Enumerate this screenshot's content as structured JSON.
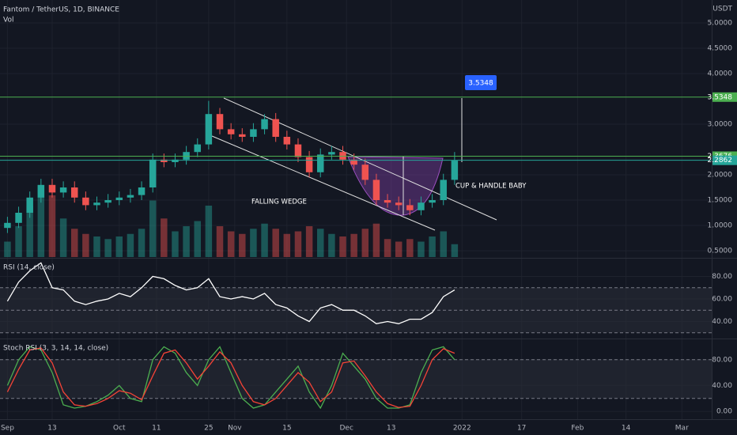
{
  "chart_data": [
    {
      "type": "candlestick",
      "title": "Fantom / TetherUS, 1D, BINANCE",
      "volume_label": "Vol",
      "currency": "USDT",
      "up_color": "#26a69a",
      "down_color": "#ef5350",
      "x": [
        0,
        3,
        6,
        9,
        12,
        15,
        18,
        21,
        24,
        27,
        30,
        33,
        36,
        39,
        42,
        45,
        48,
        51,
        54,
        57,
        60,
        63,
        66,
        69,
        72,
        75,
        78,
        81,
        84,
        87,
        90,
        93,
        96,
        99,
        102,
        105,
        108,
        111,
        114,
        117,
        120
      ],
      "open": [
        0.95,
        1.05,
        1.25,
        1.55,
        1.8,
        1.65,
        1.75,
        1.55,
        1.4,
        1.45,
        1.5,
        1.55,
        1.6,
        1.75,
        2.3,
        2.25,
        2.3,
        2.45,
        2.6,
        3.2,
        2.9,
        2.8,
        2.75,
        2.9,
        3.1,
        2.75,
        2.6,
        2.35,
        2.05,
        2.4,
        2.45,
        2.3,
        2.2,
        1.9,
        1.5,
        1.45,
        1.4,
        1.3,
        1.45,
        1.5,
        1.9
      ],
      "high": [
        1.17,
        1.37,
        1.67,
        1.92,
        1.92,
        1.87,
        1.87,
        1.67,
        1.57,
        1.62,
        1.67,
        1.72,
        1.87,
        2.42,
        2.42,
        2.42,
        2.57,
        2.72,
        3.46,
        3.32,
        3.02,
        2.92,
        3.02,
        3.2,
        3.22,
        2.87,
        2.72,
        2.47,
        2.52,
        2.57,
        2.57,
        2.42,
        2.32,
        2.02,
        1.62,
        1.57,
        1.52,
        1.57,
        1.62,
        2.02,
        2.45
      ],
      "low": [
        0.85,
        0.95,
        1.15,
        1.45,
        1.55,
        1.55,
        1.45,
        1.3,
        1.3,
        1.35,
        1.4,
        1.45,
        1.5,
        1.65,
        2.15,
        2.15,
        2.2,
        2.35,
        2.5,
        2.8,
        2.7,
        2.65,
        2.65,
        2.8,
        2.65,
        2.5,
        2.25,
        1.95,
        1.95,
        2.3,
        2.2,
        2.1,
        1.8,
        1.4,
        1.35,
        1.3,
        1.2,
        1.2,
        1.35,
        1.4,
        1.8
      ],
      "close": [
        1.05,
        1.25,
        1.55,
        1.8,
        1.65,
        1.75,
        1.55,
        1.4,
        1.45,
        1.5,
        1.55,
        1.6,
        1.75,
        2.3,
        2.25,
        2.3,
        2.45,
        2.6,
        3.2,
        2.9,
        2.8,
        2.75,
        2.9,
        3.1,
        2.75,
        2.6,
        2.35,
        2.05,
        2.4,
        2.45,
        2.3,
        2.2,
        1.9,
        1.5,
        1.45,
        1.4,
        1.3,
        1.45,
        1.5,
        1.9,
        2.28
      ],
      "volume": [
        60,
        120,
        200,
        280,
        240,
        150,
        110,
        90,
        80,
        70,
        80,
        90,
        110,
        220,
        150,
        100,
        120,
        140,
        200,
        120,
        100,
        90,
        110,
        130,
        110,
        90,
        100,
        120,
        110,
        90,
        80,
        90,
        110,
        130,
        70,
        60,
        70,
        60,
        80,
        100,
        50
      ],
      "volume_lim": [
        0,
        400
      ],
      "ylim": [
        0.375,
        5.453
      ],
      "yticks": [
        {
          "value": 5,
          "label": "5.0000"
        },
        {
          "value": 4.5,
          "label": "4.5000"
        },
        {
          "value": 4,
          "label": "4.0000"
        },
        {
          "value": 3,
          "label": "3.0000"
        },
        {
          "value": 2,
          "label": "2.0000"
        },
        {
          "value": 1.5,
          "label": "1.5000"
        },
        {
          "value": 1,
          "label": "1.0000"
        },
        {
          "value": 0.5,
          "label": "0.5000"
        }
      ],
      "levels": [
        {
          "value": 3.5348,
          "color": "#4caf50"
        },
        {
          "value": 2.3676,
          "color": "#4caf50"
        },
        {
          "value": 2.2862,
          "color": "#26a69a"
        }
      ],
      "target": 3.5348,
      "annotations": [
        "FALLING WEDGE",
        "CUP & HANDLE BABY"
      ]
    },
    {
      "type": "line",
      "title": "RSI (14, close)",
      "color": "#ffffff",
      "values": [
        58,
        75,
        85,
        92,
        70,
        68,
        58,
        55,
        58,
        60,
        65,
        62,
        70,
        80,
        78,
        72,
        68,
        70,
        78,
        62,
        60,
        62,
        60,
        65,
        55,
        52,
        45,
        40,
        52,
        55,
        50,
        50,
        45,
        38,
        40,
        38,
        42,
        42,
        48,
        62,
        68
      ],
      "ylim": [
        27,
        93.7
      ],
      "levels": [
        70,
        50,
        30
      ],
      "yticks": [
        {
          "value": 80,
          "label": "80.00"
        },
        {
          "value": 60,
          "label": "60.00"
        },
        {
          "value": 40,
          "label": "40.00"
        }
      ]
    },
    {
      "type": "line",
      "title": "Stoch RSI (3, 3, 14, 14, close)",
      "series": [
        {
          "color": "#4caf50",
          "values": [
            40,
            80,
            100,
            95,
            60,
            10,
            5,
            8,
            15,
            25,
            40,
            20,
            15,
            80,
            100,
            90,
            60,
            40,
            80,
            100,
            60,
            20,
            5,
            10,
            30,
            50,
            70,
            30,
            5,
            40,
            90,
            70,
            50,
            20,
            5,
            5,
            10,
            60,
            95,
            100,
            80
          ]
        },
        {
          "color": "#f44336",
          "values": [
            30,
            65,
            95,
            98,
            75,
            30,
            10,
            8,
            12,
            20,
            32,
            28,
            18,
            55,
            90,
            95,
            75,
            50,
            70,
            92,
            75,
            40,
            15,
            10,
            20,
            40,
            60,
            45,
            15,
            30,
            75,
            78,
            55,
            30,
            12,
            6,
            8,
            40,
            80,
            97,
            90
          ]
        }
      ],
      "ylim": [
        -10.9,
        110.3
      ],
      "levels": [
        80,
        20
      ],
      "yticks": [
        {
          "value": 80,
          "label": "80.00"
        },
        {
          "value": 40,
          "label": "40.00"
        },
        {
          "value": 0,
          "label": "0.00"
        }
      ],
      "xlim": [
        -2,
        189
      ],
      "xticks": [
        {
          "value": 0,
          "label": "Sep"
        },
        {
          "value": 12,
          "label": "13"
        },
        {
          "value": 30,
          "label": "Oct"
        },
        {
          "value": 40,
          "label": "11"
        },
        {
          "value": 54,
          "label": "25"
        },
        {
          "value": 61,
          "label": "Nov"
        },
        {
          "value": 75,
          "label": "15"
        },
        {
          "value": 91,
          "label": "Dec"
        },
        {
          "value": 103,
          "label": "13"
        },
        {
          "value": 122,
          "label": "2022"
        },
        {
          "value": 138,
          "label": "17"
        },
        {
          "value": 153,
          "label": "Feb"
        },
        {
          "value": 166,
          "label": "14"
        },
        {
          "value": 181,
          "label": "Mar"
        }
      ]
    }
  ]
}
